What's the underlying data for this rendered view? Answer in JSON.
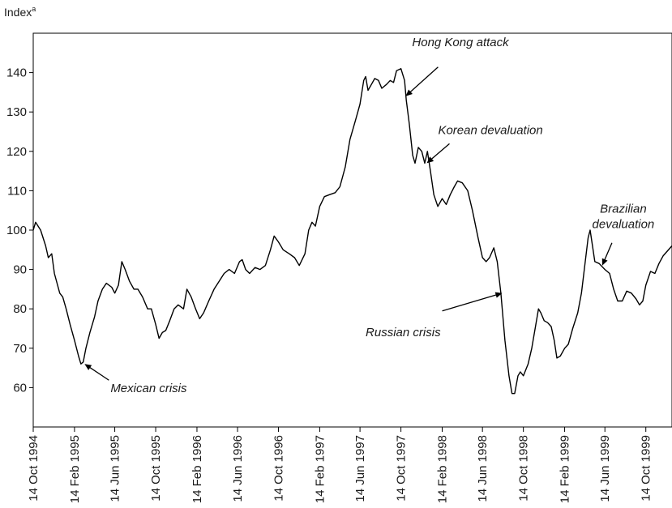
{
  "chart_data": {
    "type": "line",
    "title": "",
    "xlabel": "",
    "ylabel": "Index",
    "ylabel_superscript": "a",
    "ylim": [
      50,
      150
    ],
    "yticks": [
      60,
      70,
      80,
      90,
      100,
      110,
      120,
      130,
      140
    ],
    "x_date_range": [
      "1994-10-14",
      "1999-12-31"
    ],
    "grid": false,
    "legend": "none",
    "line_color": "#000000",
    "xtick_labels": [
      {
        "date": "1994-10-14",
        "label": "14 Oct 1994"
      },
      {
        "date": "1995-02-14",
        "label": "14 Feb 1995"
      },
      {
        "date": "1995-06-14",
        "label": "14 Jun 1995"
      },
      {
        "date": "1995-10-14",
        "label": "14 Oct 1995"
      },
      {
        "date": "1996-02-14",
        "label": "14 Feb 1996"
      },
      {
        "date": "1996-06-14",
        "label": "14 Jun 1996"
      },
      {
        "date": "1996-10-14",
        "label": "14 Oct 1996"
      },
      {
        "date": "1997-02-14",
        "label": "14 Feb 1997"
      },
      {
        "date": "1997-06-14",
        "label": "14 Jun 1997"
      },
      {
        "date": "1997-10-14",
        "label": "14 Oct 1997"
      },
      {
        "date": "1998-02-14",
        "label": "14 Feb 1998"
      },
      {
        "date": "1998-06-14",
        "label": "14 Jun 1998"
      },
      {
        "date": "1998-10-14",
        "label": "14 Oct 1998"
      },
      {
        "date": "1999-02-14",
        "label": "14 Feb 1999"
      },
      {
        "date": "1999-06-14",
        "label": "14 Jun 1999"
      },
      {
        "date": "1999-10-14",
        "label": "14 Oct 1999"
      }
    ],
    "series": [
      {
        "name": "",
        "points": [
          {
            "x": "1994-10-14",
            "y": 100
          },
          {
            "x": "1994-10-21",
            "y": 102
          },
          {
            "x": "1994-11-05",
            "y": 100
          },
          {
            "x": "1994-11-20",
            "y": 96
          },
          {
            "x": "1994-11-28",
            "y": 93
          },
          {
            "x": "1994-12-08",
            "y": 94
          },
          {
            "x": "1994-12-16",
            "y": 89
          },
          {
            "x": "1995-01-01",
            "y": 84
          },
          {
            "x": "1995-01-10",
            "y": 83
          },
          {
            "x": "1995-01-20",
            "y": 80
          },
          {
            "x": "1995-02-01",
            "y": 76
          },
          {
            "x": "1995-02-14",
            "y": 72
          },
          {
            "x": "1995-02-26",
            "y": 68
          },
          {
            "x": "1995-03-05",
            "y": 66
          },
          {
            "x": "1995-03-12",
            "y": 66.5
          },
          {
            "x": "1995-03-20",
            "y": 70
          },
          {
            "x": "1995-04-01",
            "y": 74
          },
          {
            "x": "1995-04-15",
            "y": 78
          },
          {
            "x": "1995-04-25",
            "y": 82
          },
          {
            "x": "1995-05-08",
            "y": 85
          },
          {
            "x": "1995-05-20",
            "y": 86.5
          },
          {
            "x": "1995-06-05",
            "y": 85.5
          },
          {
            "x": "1995-06-14",
            "y": 84
          },
          {
            "x": "1995-06-25",
            "y": 86
          },
          {
            "x": "1995-07-05",
            "y": 92
          },
          {
            "x": "1995-07-15",
            "y": 90
          },
          {
            "x": "1995-07-28",
            "y": 87
          },
          {
            "x": "1995-08-10",
            "y": 85
          },
          {
            "x": "1995-08-22",
            "y": 85
          },
          {
            "x": "1995-09-05",
            "y": 83
          },
          {
            "x": "1995-09-20",
            "y": 80
          },
          {
            "x": "1995-10-01",
            "y": 80
          },
          {
            "x": "1995-10-14",
            "y": 76
          },
          {
            "x": "1995-10-24",
            "y": 72.5
          },
          {
            "x": "1995-11-03",
            "y": 74
          },
          {
            "x": "1995-11-13",
            "y": 74.5
          },
          {
            "x": "1995-11-25",
            "y": 77
          },
          {
            "x": "1995-12-08",
            "y": 80
          },
          {
            "x": "1995-12-20",
            "y": 81
          },
          {
            "x": "1996-01-05",
            "y": 80
          },
          {
            "x": "1996-01-15",
            "y": 85
          },
          {
            "x": "1996-01-28",
            "y": 83
          },
          {
            "x": "1996-02-10",
            "y": 80
          },
          {
            "x": "1996-02-22",
            "y": 77.5
          },
          {
            "x": "1996-03-05",
            "y": 79
          },
          {
            "x": "1996-03-20",
            "y": 82
          },
          {
            "x": "1996-04-05",
            "y": 85
          },
          {
            "x": "1996-04-20",
            "y": 87
          },
          {
            "x": "1996-05-05",
            "y": 89
          },
          {
            "x": "1996-05-20",
            "y": 90
          },
          {
            "x": "1996-06-05",
            "y": 89
          },
          {
            "x": "1996-06-20",
            "y": 92
          },
          {
            "x": "1996-06-28",
            "y": 92.5
          },
          {
            "x": "1996-07-08",
            "y": 90
          },
          {
            "x": "1996-07-20",
            "y": 89
          },
          {
            "x": "1996-08-05",
            "y": 90.5
          },
          {
            "x": "1996-08-20",
            "y": 90
          },
          {
            "x": "1996-09-05",
            "y": 91
          },
          {
            "x": "1996-09-20",
            "y": 95
          },
          {
            "x": "1996-10-01",
            "y": 98.5
          },
          {
            "x": "1996-10-14",
            "y": 97
          },
          {
            "x": "1996-10-28",
            "y": 95
          },
          {
            "x": "1996-11-15",
            "y": 94
          },
          {
            "x": "1996-12-01",
            "y": 93
          },
          {
            "x": "1996-12-15",
            "y": 91
          },
          {
            "x": "1997-01-01",
            "y": 94
          },
          {
            "x": "1997-01-12",
            "y": 100
          },
          {
            "x": "1997-01-22",
            "y": 102
          },
          {
            "x": "1997-02-01",
            "y": 101
          },
          {
            "x": "1997-02-14",
            "y": 106
          },
          {
            "x": "1997-02-28",
            "y": 108.5
          },
          {
            "x": "1997-03-15",
            "y": 109
          },
          {
            "x": "1997-04-01",
            "y": 109.5
          },
          {
            "x": "1997-04-15",
            "y": 111
          },
          {
            "x": "1997-05-01",
            "y": 116
          },
          {
            "x": "1997-05-15",
            "y": 123
          },
          {
            "x": "1997-06-01",
            "y": 128
          },
          {
            "x": "1997-06-14",
            "y": 132
          },
          {
            "x": "1997-06-25",
            "y": 138
          },
          {
            "x": "1997-07-01",
            "y": 139
          },
          {
            "x": "1997-07-08",
            "y": 135.5
          },
          {
            "x": "1997-07-18",
            "y": 137
          },
          {
            "x": "1997-07-28",
            "y": 138.5
          },
          {
            "x": "1997-08-08",
            "y": 138
          },
          {
            "x": "1997-08-18",
            "y": 136
          },
          {
            "x": "1997-09-01",
            "y": 137
          },
          {
            "x": "1997-09-12",
            "y": 138
          },
          {
            "x": "1997-09-22",
            "y": 137.5
          },
          {
            "x": "1997-10-01",
            "y": 140.5
          },
          {
            "x": "1997-10-14",
            "y": 141
          },
          {
            "x": "1997-10-25",
            "y": 138
          },
          {
            "x": "1997-10-30",
            "y": 133
          },
          {
            "x": "1997-11-08",
            "y": 127
          },
          {
            "x": "1997-11-18",
            "y": 119
          },
          {
            "x": "1997-11-25",
            "y": 117
          },
          {
            "x": "1997-12-05",
            "y": 121
          },
          {
            "x": "1997-12-15",
            "y": 120
          },
          {
            "x": "1997-12-24",
            "y": 117
          },
          {
            "x": "1998-01-01",
            "y": 120
          },
          {
            "x": "1998-01-10",
            "y": 115
          },
          {
            "x": "1998-01-20",
            "y": 109
          },
          {
            "x": "1998-02-01",
            "y": 106
          },
          {
            "x": "1998-02-14",
            "y": 108
          },
          {
            "x": "1998-02-26",
            "y": 106.5
          },
          {
            "x": "1998-03-10",
            "y": 109
          },
          {
            "x": "1998-03-22",
            "y": 111
          },
          {
            "x": "1998-04-01",
            "y": 112.5
          },
          {
            "x": "1998-04-15",
            "y": 112
          },
          {
            "x": "1998-05-01",
            "y": 110
          },
          {
            "x": "1998-05-15",
            "y": 105
          },
          {
            "x": "1998-06-01",
            "y": 98
          },
          {
            "x": "1998-06-14",
            "y": 93
          },
          {
            "x": "1998-06-25",
            "y": 92
          },
          {
            "x": "1998-07-05",
            "y": 93
          },
          {
            "x": "1998-07-18",
            "y": 95.5
          },
          {
            "x": "1998-07-28",
            "y": 92
          },
          {
            "x": "1998-08-08",
            "y": 84
          },
          {
            "x": "1998-08-20",
            "y": 72
          },
          {
            "x": "1998-09-01",
            "y": 63
          },
          {
            "x": "1998-09-10",
            "y": 58.5
          },
          {
            "x": "1998-09-18",
            "y": 58.5
          },
          {
            "x": "1998-09-28",
            "y": 63
          },
          {
            "x": "1998-10-05",
            "y": 64
          },
          {
            "x": "1998-10-14",
            "y": 63
          },
          {
            "x": "1998-10-28",
            "y": 66
          },
          {
            "x": "1998-11-08",
            "y": 70
          },
          {
            "x": "1998-11-20",
            "y": 76
          },
          {
            "x": "1998-11-28",
            "y": 80
          },
          {
            "x": "1998-12-05",
            "y": 79
          },
          {
            "x": "1998-12-15",
            "y": 77
          },
          {
            "x": "1998-12-25",
            "y": 76.5
          },
          {
            "x": "1999-01-05",
            "y": 75.5
          },
          {
            "x": "1999-01-14",
            "y": 72
          },
          {
            "x": "1999-01-22",
            "y": 67.5
          },
          {
            "x": "1999-02-01",
            "y": 68
          },
          {
            "x": "1999-02-14",
            "y": 70
          },
          {
            "x": "1999-02-25",
            "y": 71
          },
          {
            "x": "1999-03-10",
            "y": 75
          },
          {
            "x": "1999-03-25",
            "y": 79
          },
          {
            "x": "1999-04-05",
            "y": 84
          },
          {
            "x": "1999-04-15",
            "y": 91
          },
          {
            "x": "1999-04-25",
            "y": 98
          },
          {
            "x": "1999-05-01",
            "y": 100
          },
          {
            "x": "1999-05-08",
            "y": 96
          },
          {
            "x": "1999-05-15",
            "y": 92
          },
          {
            "x": "1999-05-28",
            "y": 91.5
          },
          {
            "x": "1999-06-14",
            "y": 90
          },
          {
            "x": "1999-06-28",
            "y": 89
          },
          {
            "x": "1999-07-10",
            "y": 85
          },
          {
            "x": "1999-07-22",
            "y": 82
          },
          {
            "x": "1999-08-05",
            "y": 82
          },
          {
            "x": "1999-08-18",
            "y": 84.5
          },
          {
            "x": "1999-09-01",
            "y": 84
          },
          {
            "x": "1999-09-15",
            "y": 82.5
          },
          {
            "x": "1999-09-25",
            "y": 81
          },
          {
            "x": "1999-10-05",
            "y": 82
          },
          {
            "x": "1999-10-14",
            "y": 86
          },
          {
            "x": "1999-10-28",
            "y": 89.5
          },
          {
            "x": "1999-11-10",
            "y": 89
          },
          {
            "x": "1999-11-22",
            "y": 91.5
          },
          {
            "x": "1999-12-05",
            "y": 93.5
          },
          {
            "x": "1999-12-31",
            "y": 96
          }
        ]
      }
    ],
    "annotations": [
      {
        "lines": [
          "Hong Kong attack"
        ],
        "date": "1997-10-28",
        "value": 134
      },
      {
        "lines": [
          "Korean devaluation"
        ],
        "date": "1997-12-30",
        "value": 117
      },
      {
        "lines": [
          "Russian crisis"
        ],
        "date": "1998-08-12",
        "value": 84
      },
      {
        "lines": [
          "Mexican crisis"
        ],
        "date": "1995-03-16",
        "value": 66
      },
      {
        "lines": [
          "Brazilian",
          "devaluation"
        ],
        "date": "1999-06-06",
        "value": 91
      }
    ]
  }
}
